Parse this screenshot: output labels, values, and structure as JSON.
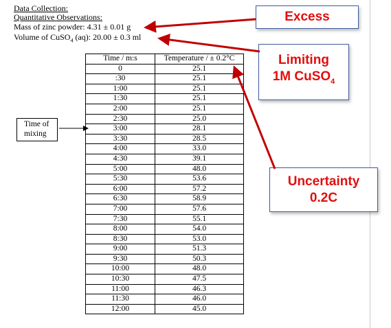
{
  "header": {
    "section_title": "Data Collection:",
    "subsection_title": "Quantitative Observations:",
    "mass_line": "Mass of zinc powder: 4.31 ± 0.01 g",
    "volume_line_prefix": "Volume of CuSO",
    "volume_line_sub": "4",
    "volume_line_suffix": " (aq): 20.00 ± 0.3 ml"
  },
  "table": {
    "col_time": "Time / m:s",
    "col_temp": "Temperature / ± 0.2°C",
    "rows": [
      [
        "0",
        "25.1"
      ],
      [
        ":30",
        "25.1"
      ],
      [
        "1:00",
        "25.1"
      ],
      [
        "1:30",
        "25.1"
      ],
      [
        "2:00",
        "25.1"
      ],
      [
        "2:30",
        "25.0"
      ],
      [
        "3:00",
        "28.1"
      ],
      [
        "3:30",
        "28.5"
      ],
      [
        "4:00",
        "33.0"
      ],
      [
        "4:30",
        "39.1"
      ],
      [
        "5:00",
        "48.0"
      ],
      [
        "5:30",
        "53.6"
      ],
      [
        "6:00",
        "57.2"
      ],
      [
        "6:30",
        "58.9"
      ],
      [
        "7:00",
        "57.6"
      ],
      [
        "7:30",
        "55.1"
      ],
      [
        "8:00",
        "54.0"
      ],
      [
        "8:30",
        "53.0"
      ],
      [
        "9:00",
        "51.3"
      ],
      [
        "9:30",
        "50.3"
      ],
      [
        "10:00",
        "48.0"
      ],
      [
        "10:30",
        "47.5"
      ],
      [
        "11:00",
        "46.3"
      ],
      [
        "11:30",
        "46.0"
      ],
      [
        "12:00",
        "45.0"
      ]
    ]
  },
  "note": {
    "line1": "Time of",
    "line2": "mixing"
  },
  "callouts": {
    "excess": "Excess",
    "limiting_line1": "Limiting",
    "limiting_line2_prefix": "1M CuSO",
    "limiting_line2_sub": "4",
    "uncertainty_line1": "Uncertainty",
    "uncertainty_line2": "0.2C"
  },
  "colors": {
    "callout_text": "#e30d0d",
    "callout_border": "#3a5ba0",
    "arrow": "#c00000"
  }
}
